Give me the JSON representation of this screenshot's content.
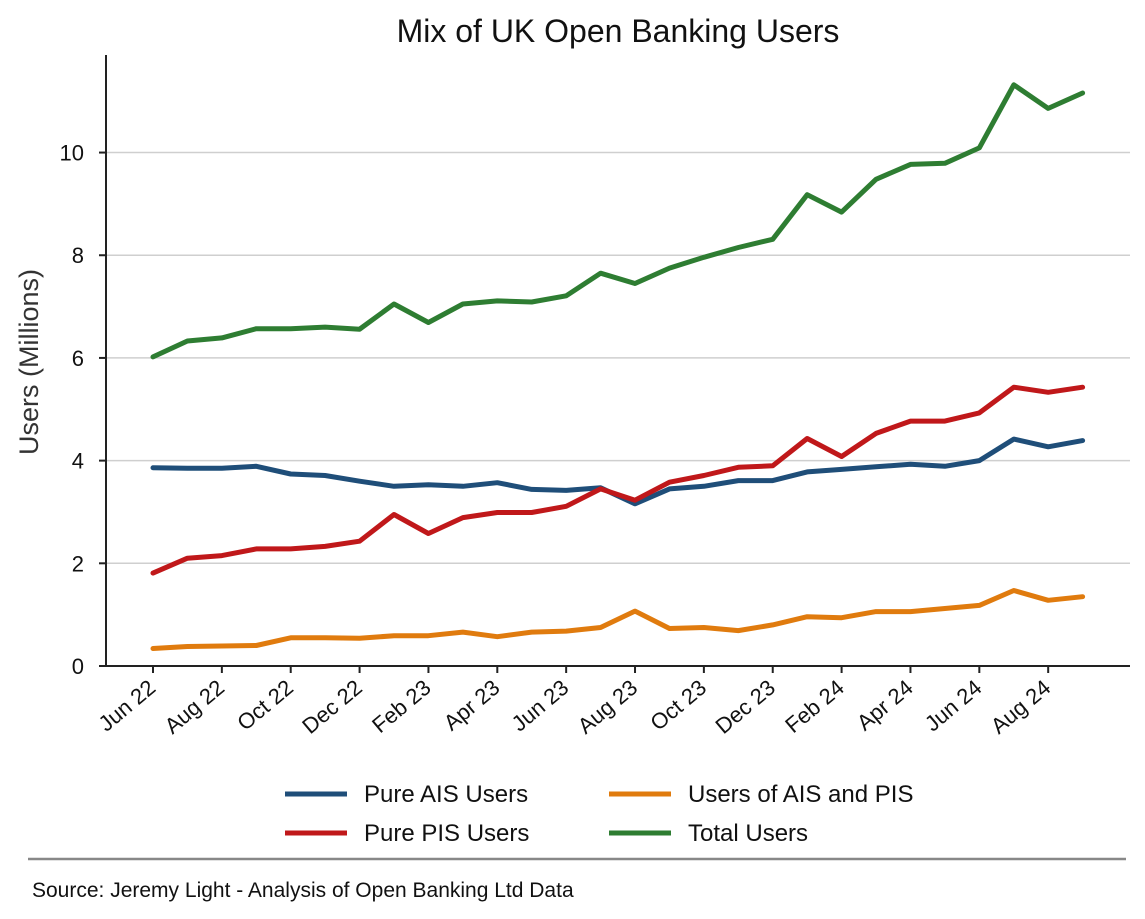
{
  "colors": {
    "ais": "#1f4e79",
    "pis": "#c0181a",
    "both": "#e07b0e",
    "total": "#2e7d32",
    "grid": "#cfcfcf",
    "axis": "#222222",
    "rule": "#888888"
  },
  "footer": {
    "source": "Source: Jeremy Light - Analysis of Open Banking Ltd Data"
  },
  "chart_data": {
    "type": "line",
    "title": "Mix of UK Open Banking Users",
    "xlabel": "",
    "ylabel": "Users (Millions)",
    "ylim": [
      0,
      11.9
    ],
    "yticks": [
      0,
      2,
      4,
      6,
      8,
      10
    ],
    "grid": "horizontal",
    "legend_position": "bottom",
    "x": [
      "Jun 22",
      "Jul 22",
      "Aug 22",
      "Sep 22",
      "Oct 22",
      "Nov 22",
      "Dec 22",
      "Jan 23",
      "Feb 23",
      "Mar 23",
      "Apr 23",
      "May 23",
      "Jun 23",
      "Jul 23",
      "Aug 23",
      "Sep 23",
      "Oct 23",
      "Nov 23",
      "Dec 23",
      "Jan 24",
      "Feb 24",
      "Mar 24",
      "Apr 24",
      "May 24",
      "Jun 24",
      "Jul 24",
      "Aug 24",
      "Sep 24"
    ],
    "xtick_labels": [
      "Jun 22",
      "Aug 22",
      "Oct 22",
      "Dec 22",
      "Feb 23",
      "Apr 23",
      "Jun 23",
      "Aug 23",
      "Oct 23",
      "Dec 23",
      "Feb 24",
      "Apr 24",
      "Jun 24",
      "Aug 24"
    ],
    "series": [
      {
        "name": "Pure AIS Users",
        "color": "#1f4e79",
        "values": [
          3.86,
          3.85,
          3.85,
          3.89,
          3.74,
          3.71,
          3.6,
          3.5,
          3.53,
          3.5,
          3.57,
          3.44,
          3.42,
          3.47,
          3.16,
          3.45,
          3.5,
          3.61,
          3.61,
          3.78,
          3.83,
          3.88,
          3.93,
          3.89,
          4.0,
          4.42,
          4.27,
          4.39
        ]
      },
      {
        "name": "Pure PIS Users",
        "color": "#c0181a",
        "values": [
          1.81,
          2.1,
          2.15,
          2.28,
          2.28,
          2.33,
          2.43,
          2.95,
          2.58,
          2.89,
          2.99,
          2.99,
          3.11,
          3.45,
          3.23,
          3.58,
          3.71,
          3.87,
          3.9,
          4.43,
          4.08,
          4.53,
          4.77,
          4.77,
          4.93,
          5.43,
          5.33,
          5.43
        ]
      },
      {
        "name": "Users of AIS and PIS",
        "color": "#e07b0e",
        "values": [
          0.34,
          0.38,
          0.39,
          0.4,
          0.55,
          0.55,
          0.54,
          0.59,
          0.59,
          0.66,
          0.57,
          0.66,
          0.68,
          0.75,
          1.07,
          0.73,
          0.75,
          0.69,
          0.8,
          0.96,
          0.94,
          1.06,
          1.06,
          1.12,
          1.18,
          1.47,
          1.28,
          1.35
        ]
      },
      {
        "name": "Total Users",
        "color": "#2e7d32",
        "values": [
          6.02,
          6.33,
          6.39,
          6.57,
          6.57,
          6.6,
          6.56,
          7.05,
          6.69,
          7.05,
          7.11,
          7.09,
          7.21,
          7.65,
          7.45,
          7.75,
          7.96,
          8.15,
          8.31,
          9.18,
          8.84,
          9.48,
          9.77,
          9.79,
          10.09,
          11.32,
          10.86,
          11.16
        ]
      }
    ],
    "legend_order": [
      "Pure AIS Users",
      "Users of AIS and PIS",
      "Pure PIS Users",
      "Total Users"
    ]
  }
}
